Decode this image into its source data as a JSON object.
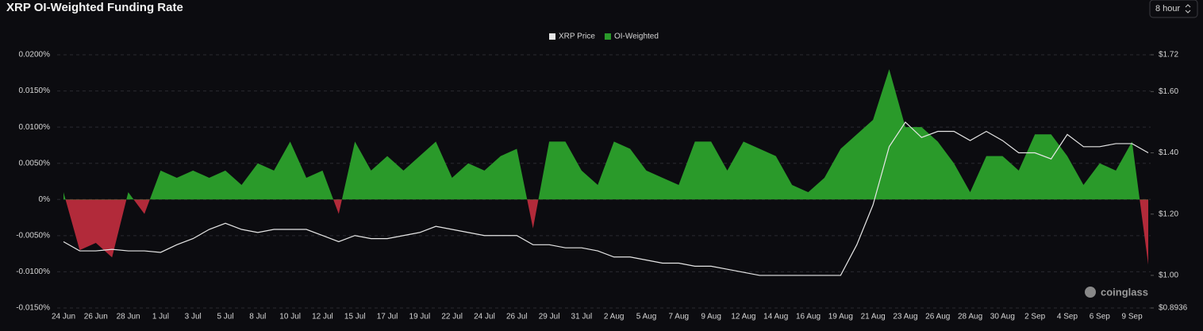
{
  "chart_data": {
    "type": "area",
    "title": "XRP OI-Weighted Funding Rate",
    "selector": "8 hour",
    "watermark": "coinglass",
    "categories": [
      "24 Jun",
      null,
      "26 Jun",
      null,
      "28 Jun",
      null,
      "1 Jul",
      null,
      "3 Jul",
      null,
      "5 Jul",
      null,
      "8 Jul",
      null,
      "10 Jul",
      null,
      "12 Jul",
      null,
      "15 Jul",
      null,
      "17 Jul",
      null,
      "19 Jul",
      null,
      "22 Jul",
      null,
      "24 Jul",
      null,
      "26 Jul",
      null,
      "29 Jul",
      null,
      "31 Jul",
      null,
      "2 Aug",
      null,
      "5 Aug",
      null,
      "7 Aug",
      null,
      "9 Aug",
      null,
      "12 Aug",
      null,
      "14 Aug",
      null,
      "16 Aug",
      null,
      "19 Aug",
      null,
      "21 Aug",
      null,
      "23 Aug",
      null,
      "26 Aug",
      null,
      "28 Aug",
      null,
      "30 Aug",
      null,
      "2 Sep",
      null,
      "4 Sep",
      null,
      "6 Sep",
      null,
      "9 Sep",
      null
    ],
    "series": [
      {
        "name": "XRP Price",
        "color": "#e6e6e6",
        "axis": "y2",
        "values": [
          1.11,
          1.08,
          1.08,
          1.085,
          1.08,
          1.08,
          1.075,
          1.1,
          1.12,
          1.15,
          1.17,
          1.15,
          1.14,
          1.15,
          1.15,
          1.15,
          1.13,
          1.11,
          1.13,
          1.12,
          1.12,
          1.13,
          1.14,
          1.16,
          1.15,
          1.14,
          1.13,
          1.13,
          1.13,
          1.1,
          1.1,
          1.09,
          1.09,
          1.08,
          1.06,
          1.06,
          1.05,
          1.04,
          1.04,
          1.03,
          1.03,
          1.02,
          1.01,
          1.0,
          1.0,
          1.0,
          1.0,
          1.0,
          1.0,
          1.1,
          1.23,
          1.42,
          1.5,
          1.45,
          1.47,
          1.47,
          1.44,
          1.47,
          1.44,
          1.4,
          1.4,
          1.38,
          1.46,
          1.42,
          1.42,
          1.43,
          1.43,
          1.4
        ]
      },
      {
        "name": "OI-Weighted",
        "color": "#2a9a2a",
        "negative_color": "#b22a3a",
        "values": [
          0.001,
          -0.007,
          -0.006,
          -0.008,
          0.001,
          -0.002,
          0.004,
          0.003,
          0.004,
          0.003,
          0.004,
          0.002,
          0.005,
          0.004,
          0.008,
          0.003,
          0.004,
          -0.002,
          0.008,
          0.004,
          0.006,
          0.004,
          0.006,
          0.008,
          0.003,
          0.005,
          0.004,
          0.006,
          0.007,
          -0.004,
          0.008,
          0.008,
          0.004,
          0.002,
          0.008,
          0.007,
          0.004,
          0.003,
          0.002,
          0.008,
          0.008,
          0.004,
          0.008,
          0.007,
          0.006,
          0.002,
          0.001,
          0.003,
          0.007,
          0.009,
          0.011,
          0.018,
          0.01,
          0.01,
          0.008,
          0.005,
          0.001,
          0.006,
          0.006,
          0.004,
          0.009,
          0.009,
          0.006,
          0.002,
          0.005,
          0.004,
          0.008,
          -0.009
        ]
      }
    ],
    "ylim": [
      -0.015,
      0.02
    ],
    "yticks": [
      {
        "value": 0.02,
        "label": "0.0200%"
      },
      {
        "value": 0.015,
        "label": "0.0150%"
      },
      {
        "value": 0.01,
        "label": "0.0100%"
      },
      {
        "value": 0.005,
        "label": "0.0050%"
      },
      {
        "value": 0,
        "label": "0%"
      },
      {
        "value": -0.005,
        "label": "-0.0050%"
      },
      {
        "value": -0.01,
        "label": "-0.0100%"
      },
      {
        "value": -0.015,
        "label": "-0.0150%"
      }
    ],
    "y2lim": [
      0.8936,
      1.72
    ],
    "y2ticks": [
      {
        "value": 1.72,
        "label": "$1.72"
      },
      {
        "value": 1.6,
        "label": "$1.60"
      },
      {
        "value": 1.4,
        "label": "$1.40"
      },
      {
        "value": 1.2,
        "label": "$1.20"
      },
      {
        "value": 1.0,
        "label": "$1.00"
      },
      {
        "value": 0.8936,
        "label": "$0.8936"
      }
    ],
    "grid": true,
    "legend": "top"
  }
}
